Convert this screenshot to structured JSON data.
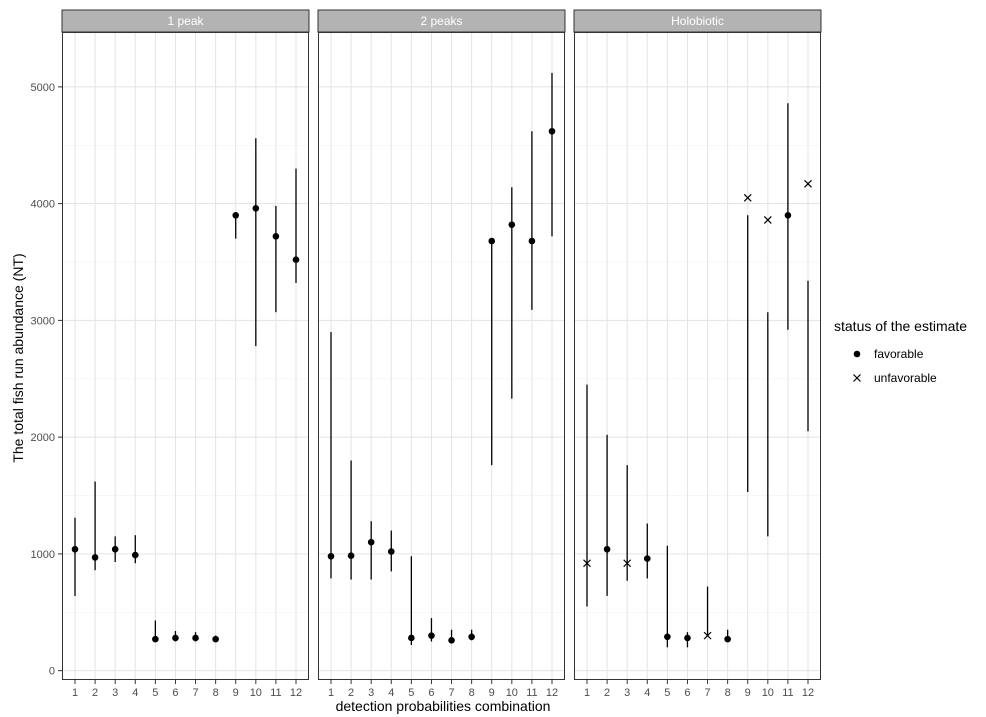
{
  "chart_data": {
    "type": "scatter",
    "ylabel": "The total fish run abundance (NT)",
    "xlabel": "detection probabilities combination",
    "x_ticks": [
      "1",
      "2",
      "3",
      "4",
      "5",
      "6",
      "7",
      "8",
      "9",
      "10",
      "11",
      "12"
    ],
    "y_ticks": [
      0,
      1000,
      2000,
      3000,
      4000,
      5000
    ],
    "ylim": [
      -80,
      5470
    ],
    "grid": true,
    "legend": {
      "title": "status of the estimate",
      "placement": "right",
      "entries": [
        {
          "label": "favorable",
          "shape": "dot"
        },
        {
          "label": "unfavorable",
          "shape": "cross"
        }
      ]
    },
    "panels": [
      {
        "title": "1 peak",
        "points": [
          {
            "x": 1,
            "y": 1040,
            "lo": 640,
            "hi": 1310,
            "status": "favorable"
          },
          {
            "x": 2,
            "y": 970,
            "lo": 860,
            "hi": 1620,
            "status": "favorable"
          },
          {
            "x": 3,
            "y": 1040,
            "lo": 930,
            "hi": 1150,
            "status": "favorable"
          },
          {
            "x": 4,
            "y": 990,
            "lo": 920,
            "hi": 1160,
            "status": "favorable"
          },
          {
            "x": 5,
            "y": 270,
            "lo": 270,
            "hi": 430,
            "status": "favorable"
          },
          {
            "x": 6,
            "y": 280,
            "lo": 250,
            "hi": 340,
            "status": "favorable"
          },
          {
            "x": 7,
            "y": 280,
            "lo": 250,
            "hi": 330,
            "status": "favorable"
          },
          {
            "x": 8,
            "y": 270,
            "lo": 250,
            "hi": 300,
            "status": "favorable"
          },
          {
            "x": 9,
            "y": 3900,
            "lo": 3700,
            "hi": 3900,
            "status": "favorable"
          },
          {
            "x": 10,
            "y": 3960,
            "lo": 2780,
            "hi": 4560,
            "status": "favorable"
          },
          {
            "x": 11,
            "y": 3720,
            "lo": 3070,
            "hi": 3980,
            "status": "favorable"
          },
          {
            "x": 12,
            "y": 3520,
            "lo": 3320,
            "hi": 4300,
            "status": "favorable"
          }
        ]
      },
      {
        "title": "2 peaks",
        "points": [
          {
            "x": 1,
            "y": 980,
            "lo": 790,
            "hi": 2900,
            "status": "favorable"
          },
          {
            "x": 2,
            "y": 985,
            "lo": 780,
            "hi": 1800,
            "status": "favorable"
          },
          {
            "x": 3,
            "y": 1100,
            "lo": 780,
            "hi": 1280,
            "status": "favorable"
          },
          {
            "x": 4,
            "y": 1020,
            "lo": 850,
            "hi": 1200,
            "status": "favorable"
          },
          {
            "x": 5,
            "y": 280,
            "lo": 220,
            "hi": 980,
            "status": "favorable"
          },
          {
            "x": 6,
            "y": 300,
            "lo": 250,
            "hi": 450,
            "status": "favorable"
          },
          {
            "x": 7,
            "y": 260,
            "lo": 240,
            "hi": 350,
            "status": "favorable"
          },
          {
            "x": 8,
            "y": 290,
            "lo": 260,
            "hi": 350,
            "status": "favorable"
          },
          {
            "x": 9,
            "y": 3680,
            "lo": 1760,
            "hi": 3680,
            "status": "favorable"
          },
          {
            "x": 10,
            "y": 3820,
            "lo": 2330,
            "hi": 4140,
            "status": "favorable"
          },
          {
            "x": 11,
            "y": 3680,
            "lo": 3090,
            "hi": 4620,
            "status": "favorable"
          },
          {
            "x": 12,
            "y": 4620,
            "lo": 3720,
            "hi": 5120,
            "status": "favorable"
          }
        ]
      },
      {
        "title": "Holobiotic",
        "points": [
          {
            "x": 1,
            "y": 920,
            "lo": 550,
            "hi": 2450,
            "status": "unfavorable"
          },
          {
            "x": 2,
            "y": 1040,
            "lo": 640,
            "hi": 2020,
            "status": "favorable"
          },
          {
            "x": 3,
            "y": 920,
            "lo": 770,
            "hi": 1760,
            "status": "unfavorable"
          },
          {
            "x": 4,
            "y": 960,
            "lo": 790,
            "hi": 1260,
            "status": "favorable"
          },
          {
            "x": 5,
            "y": 290,
            "lo": 200,
            "hi": 1070,
            "status": "favorable"
          },
          {
            "x": 6,
            "y": 280,
            "lo": 200,
            "hi": 330,
            "status": "favorable"
          },
          {
            "x": 7,
            "y": 300,
            "lo": 300,
            "hi": 720,
            "status": "unfavorable"
          },
          {
            "x": 8,
            "y": 270,
            "lo": 250,
            "hi": 350,
            "status": "favorable"
          },
          {
            "x": 9,
            "y": 4050,
            "lo": 1530,
            "hi": 3900,
            "status": "unfavorable"
          },
          {
            "x": 10,
            "y": 3860,
            "lo": 1150,
            "hi": 3070,
            "status": "unfavorable"
          },
          {
            "x": 11,
            "y": 3900,
            "lo": 2920,
            "hi": 4860,
            "status": "favorable"
          },
          {
            "x": 12,
            "y": 4170,
            "lo": 2050,
            "hi": 3340,
            "status": "unfavorable"
          }
        ]
      }
    ]
  }
}
